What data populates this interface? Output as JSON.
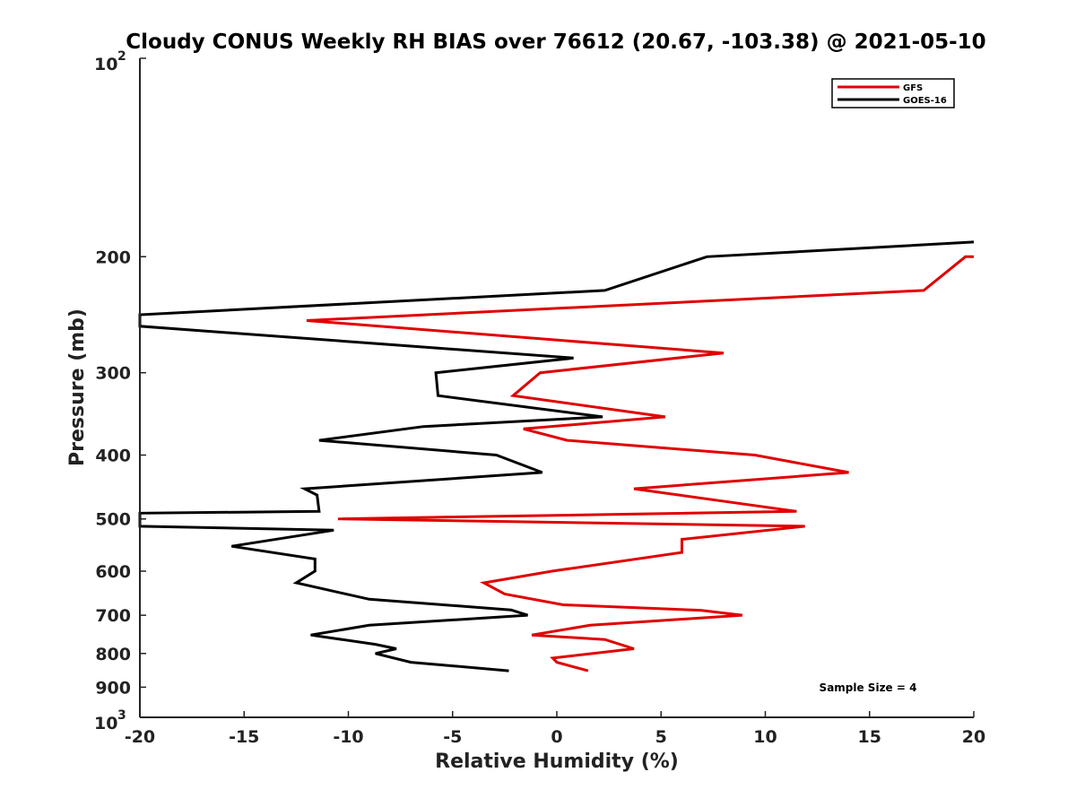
{
  "chart_data": {
    "type": "line",
    "title": "Cloudy CONUS Weekly RH BIAS over 76612 (20.67, -103.38) @ 2021-05-10",
    "xlabel": "Relative Humidity (%)",
    "ylabel": "Pressure (mb)",
    "xlim": [
      -20,
      20
    ],
    "ylim": [
      100,
      1000
    ],
    "yscale": "log",
    "y_reversed": true,
    "xticks": [
      -20,
      -15,
      -10,
      -5,
      0,
      5,
      10,
      15,
      20
    ],
    "yticks": [
      {
        "value": 100,
        "base": "10",
        "exp": "2"
      },
      {
        "value": 200,
        "label": "200"
      },
      {
        "value": 300,
        "label": "300"
      },
      {
        "value": 400,
        "label": "400"
      },
      {
        "value": 500,
        "label": "500"
      },
      {
        "value": 600,
        "label": "600"
      },
      {
        "value": 700,
        "label": "700"
      },
      {
        "value": 800,
        "label": "800"
      },
      {
        "value": 900,
        "label": "900"
      },
      {
        "value": 1000,
        "base": "10",
        "exp": "3"
      }
    ],
    "legend_position": "top-right",
    "annotation": "Sample Size = 4",
    "series": [
      {
        "name": "GFS",
        "color": "#e00000",
        "points": [
          [
            20.0,
            200
          ],
          [
            19.6,
            200
          ],
          [
            17.6,
            225
          ],
          [
            -12.0,
            250
          ],
          [
            8.0,
            280
          ],
          [
            -0.8,
            300
          ],
          [
            -2.1,
            325
          ],
          [
            5.2,
            350
          ],
          [
            -1.6,
            365
          ],
          [
            0.5,
            380
          ],
          [
            9.5,
            400
          ],
          [
            14.0,
            425
          ],
          [
            3.7,
            450
          ],
          [
            11.5,
            487
          ],
          [
            -10.5,
            500
          ],
          [
            11.9,
            513
          ],
          [
            6.0,
            537
          ],
          [
            6.0,
            562
          ],
          [
            -0.2,
            600
          ],
          [
            -3.5,
            625
          ],
          [
            -2.5,
            650
          ],
          [
            0.3,
            675
          ],
          [
            6.9,
            688
          ],
          [
            8.9,
            700
          ],
          [
            1.6,
            725
          ],
          [
            -1.2,
            750
          ],
          [
            2.3,
            762
          ],
          [
            3.7,
            787
          ],
          [
            -0.2,
            813
          ],
          [
            0.0,
            825
          ],
          [
            1.5,
            850
          ]
        ]
      },
      {
        "name": "GOES-16",
        "color": "#000000",
        "points": [
          [
            20.0,
            190
          ],
          [
            7.2,
            200
          ],
          [
            2.3,
            225
          ],
          [
            -20.0,
            245
          ],
          [
            -20.0,
            255
          ],
          [
            0.8,
            285
          ],
          [
            -5.8,
            300
          ],
          [
            -5.7,
            325
          ],
          [
            2.2,
            350
          ],
          [
            -6.4,
            362
          ],
          [
            -11.4,
            380
          ],
          [
            -2.9,
            400
          ],
          [
            -0.7,
            425
          ],
          [
            -12.1,
            450
          ],
          [
            -11.5,
            460
          ],
          [
            -11.4,
            487
          ],
          [
            -20.0,
            490
          ],
          [
            -20.0,
            513
          ],
          [
            -10.7,
            520
          ],
          [
            -15.6,
            550
          ],
          [
            -11.6,
            575
          ],
          [
            -11.6,
            600
          ],
          [
            -12.5,
            625
          ],
          [
            -9.0,
            662
          ],
          [
            -2.2,
            687
          ],
          [
            -1.4,
            700
          ],
          [
            -9.0,
            725
          ],
          [
            -11.8,
            750
          ],
          [
            -8.7,
            775
          ],
          [
            -7.7,
            787
          ],
          [
            -8.7,
            800
          ],
          [
            -7.0,
            825
          ],
          [
            -2.3,
            850
          ]
        ]
      }
    ]
  }
}
